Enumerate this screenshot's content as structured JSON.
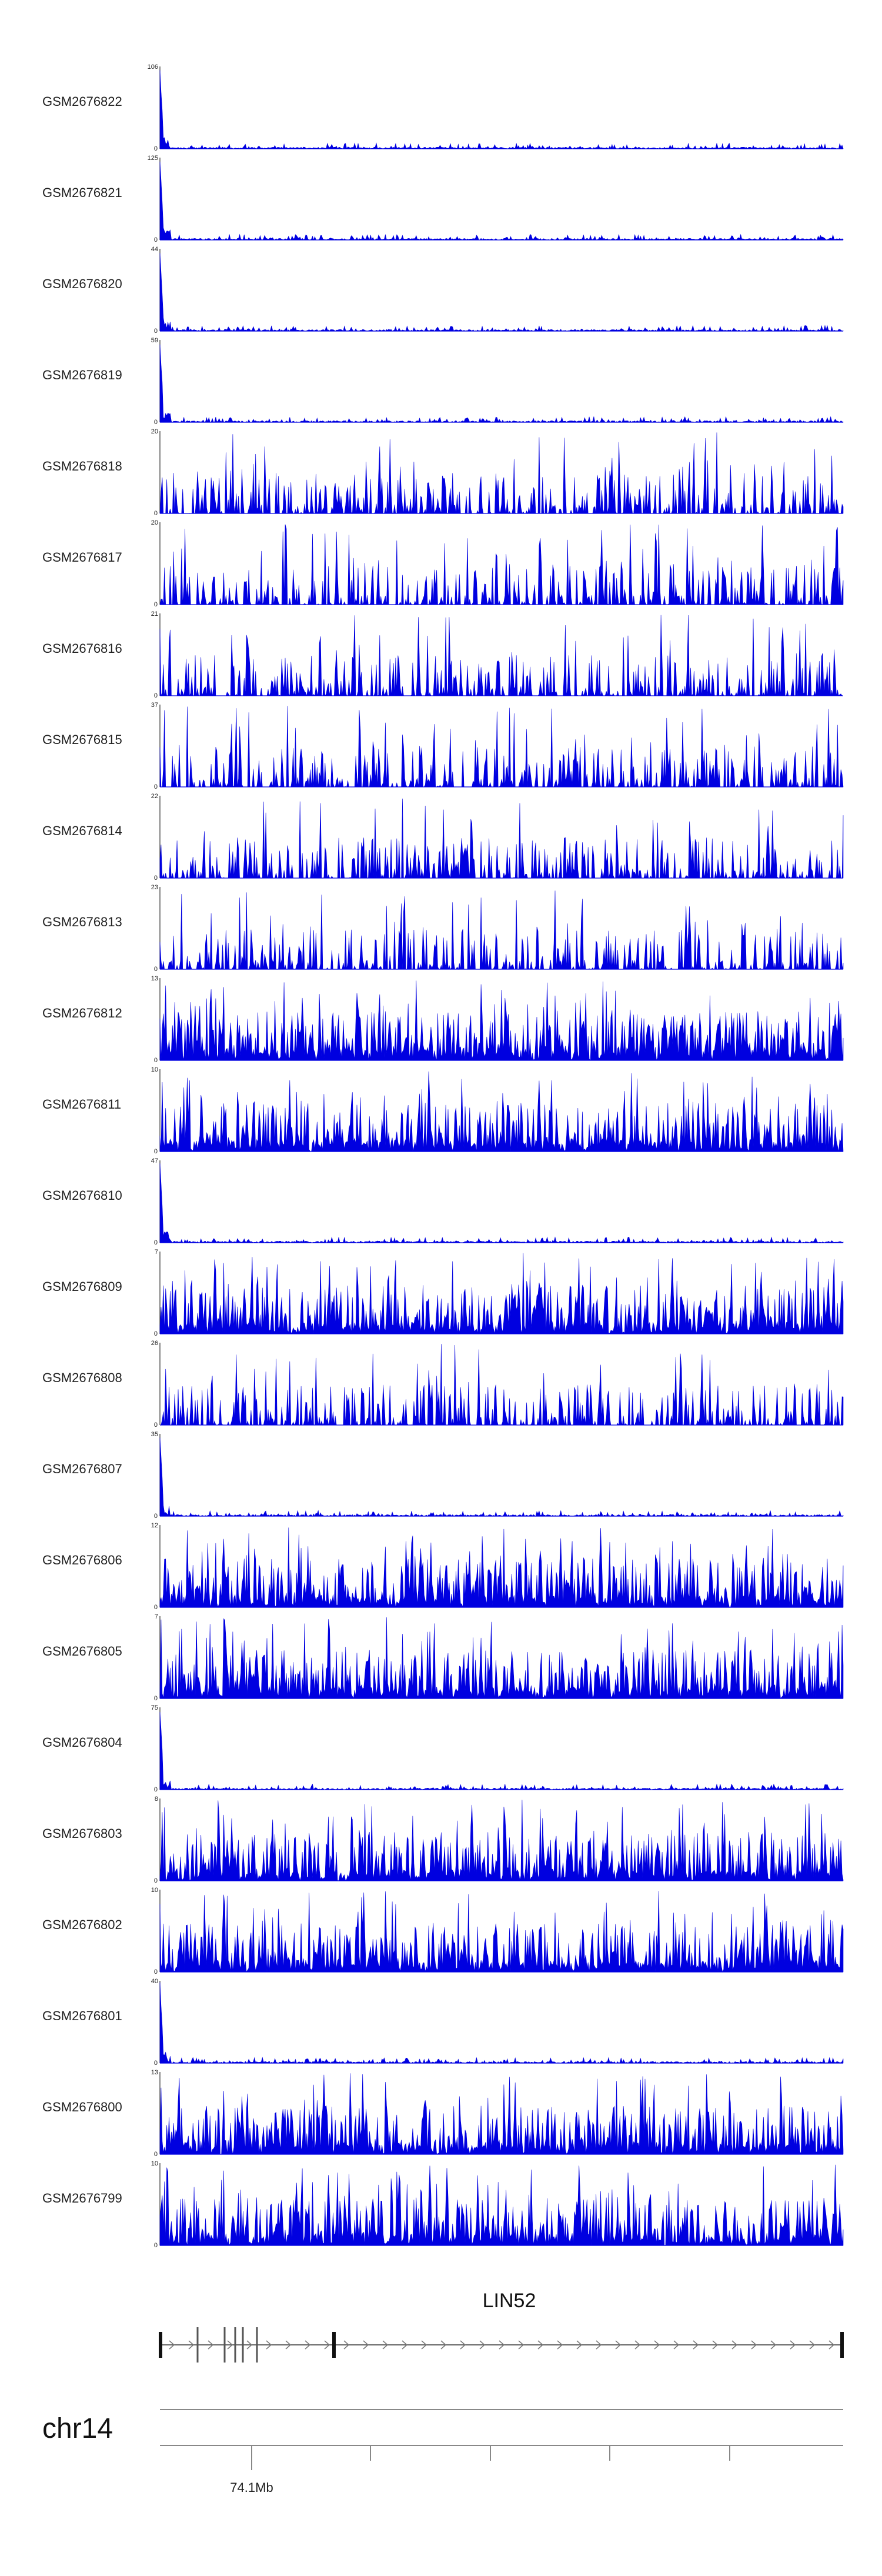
{
  "chart_data": {
    "type": "area",
    "colors": {
      "signal": "#0000e0",
      "axis": "#333333",
      "gene": "#333333"
    },
    "tracks": [
      {
        "name": "GSM2676822",
        "ymax": "106",
        "ymin": "0",
        "pattern": "spike"
      },
      {
        "name": "GSM2676821",
        "ymax": "125",
        "ymin": "0",
        "pattern": "spike"
      },
      {
        "name": "GSM2676820",
        "ymax": "44",
        "ymin": "0",
        "pattern": "spike"
      },
      {
        "name": "GSM2676819",
        "ymax": "59",
        "ymin": "0",
        "pattern": "spike"
      },
      {
        "name": "GSM2676818",
        "ymax": "20",
        "ymin": "0",
        "pattern": "sparse"
      },
      {
        "name": "GSM2676817",
        "ymax": "20",
        "ymin": "0",
        "pattern": "sparse"
      },
      {
        "name": "GSM2676816",
        "ymax": "21",
        "ymin": "0",
        "pattern": "sparse"
      },
      {
        "name": "GSM2676815",
        "ymax": "37",
        "ymin": "0",
        "pattern": "sparse"
      },
      {
        "name": "GSM2676814",
        "ymax": "22",
        "ymin": "0",
        "pattern": "sparse"
      },
      {
        "name": "GSM2676813",
        "ymax": "23",
        "ymin": "0",
        "pattern": "sparse"
      },
      {
        "name": "GSM2676812",
        "ymax": "13",
        "ymin": "0",
        "pattern": "dense"
      },
      {
        "name": "GSM2676811",
        "ymax": "10",
        "ymin": "0",
        "pattern": "dense"
      },
      {
        "name": "GSM2676810",
        "ymax": "47",
        "ymin": "0",
        "pattern": "spike"
      },
      {
        "name": "GSM2676809",
        "ymax": "7",
        "ymin": "0",
        "pattern": "dense"
      },
      {
        "name": "GSM2676808",
        "ymax": "26",
        "ymin": "0",
        "pattern": "sparse"
      },
      {
        "name": "GSM2676807",
        "ymax": "35",
        "ymin": "0",
        "pattern": "spike"
      },
      {
        "name": "GSM2676806",
        "ymax": "12",
        "ymin": "0",
        "pattern": "dense"
      },
      {
        "name": "GSM2676805",
        "ymax": "7",
        "ymin": "0",
        "pattern": "dense"
      },
      {
        "name": "GSM2676804",
        "ymax": "75",
        "ymin": "0",
        "pattern": "spike"
      },
      {
        "name": "GSM2676803",
        "ymax": "8",
        "ymin": "0",
        "pattern": "dense"
      },
      {
        "name": "GSM2676802",
        "ymax": "10",
        "ymin": "0",
        "pattern": "dense"
      },
      {
        "name": "GSM2676801",
        "ymax": "40",
        "ymin": "0",
        "pattern": "spike"
      },
      {
        "name": "GSM2676800",
        "ymax": "13",
        "ymin": "0",
        "pattern": "dense"
      },
      {
        "name": "GSM2676799",
        "ymax": "10",
        "ymin": "0",
        "pattern": "dense"
      }
    ],
    "gene": {
      "name": "LIN52"
    },
    "chromosome": {
      "name": "chr14",
      "tick_label": "74.1Mb"
    }
  }
}
